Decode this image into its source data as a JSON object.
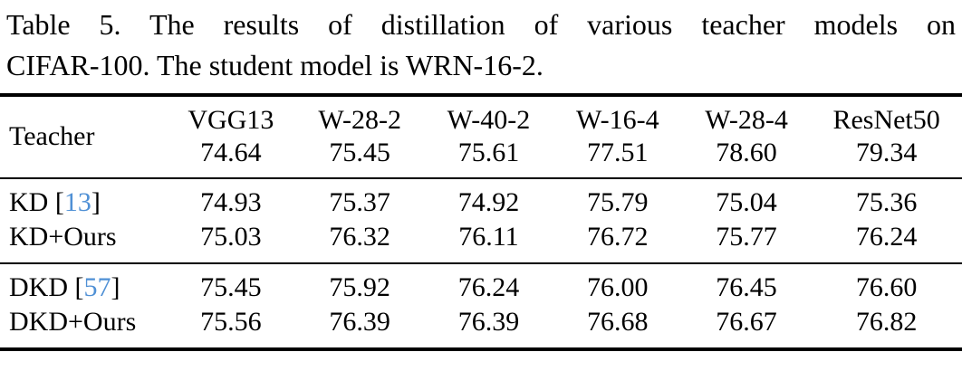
{
  "caption": {
    "tag": "Table 5.",
    "line1_rest": "The results of distillation of various teacher models on",
    "line2": "CIFAR-100. The student model is WRN-16-2."
  },
  "table": {
    "teacher_header": "Teacher",
    "columns": [
      {
        "name": "VGG13",
        "accuracy": "74.64"
      },
      {
        "name": "W-28-2",
        "accuracy": "75.45"
      },
      {
        "name": "W-40-2",
        "accuracy": "75.61"
      },
      {
        "name": "W-16-4",
        "accuracy": "77.51"
      },
      {
        "name": "W-28-4",
        "accuracy": "78.60"
      },
      {
        "name": "ResNet50",
        "accuracy": "79.34"
      }
    ],
    "groups": [
      {
        "rows": [
          {
            "label": {
              "method": "KD",
              "open": " [",
              "cite": "13",
              "close": "]"
            },
            "values": [
              "74.93",
              "75.37",
              "74.92",
              "75.79",
              "75.04",
              "75.36"
            ]
          },
          {
            "label": {
              "method": "KD+Ours"
            },
            "values": [
              "75.03",
              "76.32",
              "76.11",
              "76.72",
              "75.77",
              "76.24"
            ]
          }
        ]
      },
      {
        "rows": [
          {
            "label": {
              "method": "DKD",
              "open": " [",
              "cite": "57",
              "close": "]"
            },
            "values": [
              "75.45",
              "75.92",
              "76.24",
              "76.00",
              "76.45",
              "76.60"
            ]
          },
          {
            "label": {
              "method": "DKD+Ours"
            },
            "values": [
              "75.56",
              "76.39",
              "76.39",
              "76.68",
              "76.67",
              "76.82"
            ]
          }
        ]
      }
    ]
  },
  "colors": {
    "text": "#000000",
    "citation_link": "#4f90d5",
    "rule": "#000000",
    "background": "#ffffff"
  }
}
